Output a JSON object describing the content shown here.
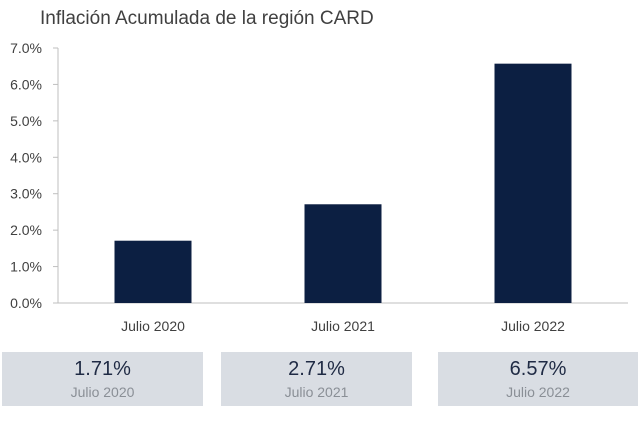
{
  "chart_data": {
    "type": "bar",
    "title": "Inflación Acumulada de la región CARD",
    "categories": [
      "Julio 2020",
      "Julio 2021",
      "Julio 2022"
    ],
    "values": [
      1.71,
      2.71,
      6.57
    ],
    "ylim": [
      0,
      7
    ],
    "yticks": [
      "0.0%",
      "1.0%",
      "2.0%",
      "3.0%",
      "4.0%",
      "5.0%",
      "6.0%",
      "7.0%"
    ],
    "xlabel": "",
    "ylabel": "",
    "grid": false,
    "bar_color": "#0c1f42"
  },
  "summary": [
    {
      "value": "1.71%",
      "label": "Julio 2020"
    },
    {
      "value": "2.71%",
      "label": "Julio 2021"
    },
    {
      "value": "6.57%",
      "label": "Julio 2022"
    }
  ]
}
